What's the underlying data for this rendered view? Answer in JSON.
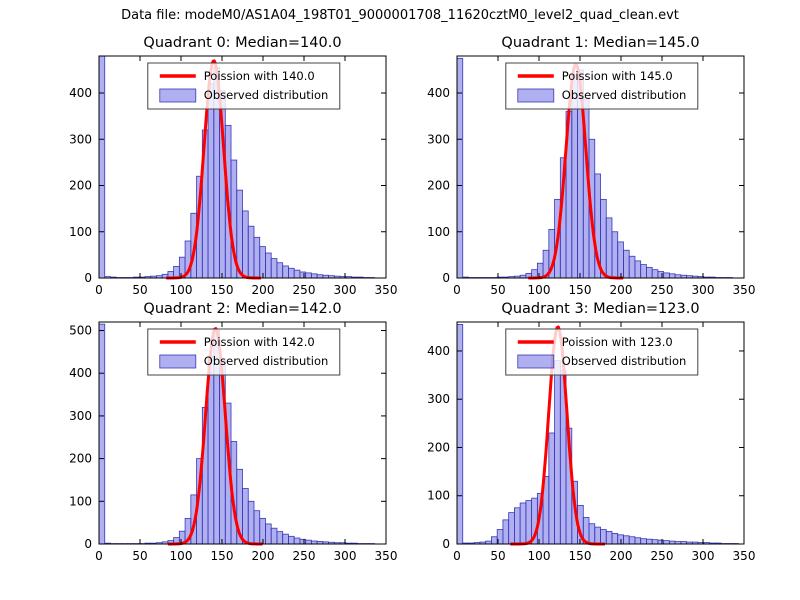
{
  "figure_title": "Data file: modeM0/AS1A04_198T01_9000001708_11620cztM0_level2_quad_clean.evt",
  "colors": {
    "bar_fill": "rgba(80,80,225,0.45)",
    "bar_edge": "#3737b8",
    "curve": "#ff0000",
    "axis": "#000000",
    "legend_border": "#444444",
    "background": "#ffffff"
  },
  "chart_data": [
    {
      "type": "bar",
      "title": "Quadrant 0: Median=140.0",
      "median": 140.0,
      "legend": [
        "Poission with 140.0",
        "Observed distribution"
      ],
      "xlim": [
        0,
        350
      ],
      "ylim": [
        0,
        480
      ],
      "xticks": [
        0,
        50,
        100,
        150,
        200,
        250,
        300,
        350
      ],
      "yticks": [
        0,
        100,
        200,
        300,
        400
      ],
      "bin_start": 0,
      "bin_width": 7,
      "counts": [
        480,
        3,
        2,
        1,
        1,
        1,
        2,
        2,
        3,
        4,
        5,
        8,
        14,
        25,
        45,
        80,
        140,
        220,
        320,
        420,
        455,
        405,
        330,
        255,
        190,
        145,
        112,
        88,
        68,
        54,
        42,
        33,
        26,
        21,
        17,
        13,
        11,
        9,
        7,
        6,
        5,
        4,
        3,
        3,
        2,
        2,
        1,
        1,
        0,
        0
      ],
      "curve": {
        "type": "poisson",
        "mu": 140.0,
        "peak": 470
      }
    },
    {
      "type": "bar",
      "title": "Quadrant 1: Median=145.0",
      "median": 145.0,
      "legend": [
        "Poission with 145.0",
        "Observed distribution"
      ],
      "xlim": [
        0,
        350
      ],
      "ylim": [
        0,
        480
      ],
      "xticks": [
        0,
        50,
        100,
        150,
        200,
        250,
        300,
        350
      ],
      "yticks": [
        0,
        100,
        200,
        300,
        400
      ],
      "bin_start": 0,
      "bin_width": 7,
      "counts": [
        475,
        2,
        1,
        1,
        1,
        1,
        1,
        2,
        2,
        3,
        4,
        6,
        10,
        18,
        32,
        60,
        105,
        170,
        260,
        360,
        440,
        450,
        390,
        300,
        225,
        170,
        130,
        100,
        78,
        60,
        47,
        37,
        29,
        23,
        18,
        14,
        11,
        9,
        7,
        6,
        5,
        4,
        3,
        2,
        2,
        1,
        1,
        1,
        0,
        0
      ],
      "curve": {
        "type": "poisson",
        "mu": 145.0,
        "peak": 462
      }
    },
    {
      "type": "bar",
      "title": "Quadrant 2: Median=142.0",
      "median": 142.0,
      "legend": [
        "Poission with 142.0",
        "Observed distribution"
      ],
      "xlim": [
        0,
        350
      ],
      "ylim": [
        0,
        520
      ],
      "xticks": [
        0,
        50,
        100,
        150,
        200,
        250,
        300,
        350
      ],
      "yticks": [
        0,
        100,
        200,
        300,
        400,
        500
      ],
      "bin_start": 0,
      "bin_width": 7,
      "counts": [
        515,
        2,
        1,
        1,
        1,
        1,
        1,
        1,
        2,
        2,
        3,
        5,
        8,
        15,
        30,
        60,
        115,
        200,
        320,
        440,
        500,
        430,
        330,
        240,
        175,
        130,
        100,
        78,
        60,
        47,
        37,
        29,
        23,
        18,
        14,
        11,
        9,
        7,
        6,
        5,
        4,
        3,
        3,
        2,
        2,
        1,
        1,
        1,
        0,
        0
      ],
      "curve": {
        "type": "poisson",
        "mu": 142.0,
        "peak": 505
      }
    },
    {
      "type": "bar",
      "title": "Quadrant 3: Median=123.0",
      "median": 123.0,
      "legend": [
        "Poission with 123.0",
        "Observed distribution"
      ],
      "xlim": [
        0,
        350
      ],
      "ylim": [
        0,
        460
      ],
      "xticks": [
        0,
        50,
        100,
        150,
        200,
        250,
        300,
        350
      ],
      "yticks": [
        0,
        100,
        200,
        300,
        400
      ],
      "bin_start": 0,
      "bin_width": 7,
      "counts": [
        455,
        2,
        2,
        3,
        4,
        6,
        15,
        30,
        50,
        65,
        75,
        85,
        90,
        95,
        105,
        140,
        230,
        380,
        360,
        240,
        130,
        80,
        55,
        42,
        35,
        30,
        26,
        22,
        19,
        17,
        15,
        13,
        11,
        10,
        9,
        8,
        7,
        6,
        5,
        5,
        4,
        4,
        3,
        3,
        2,
        2,
        1,
        1,
        1,
        0
      ],
      "curve": {
        "type": "poisson",
        "mu": 123.0,
        "peak": 450
      }
    }
  ]
}
